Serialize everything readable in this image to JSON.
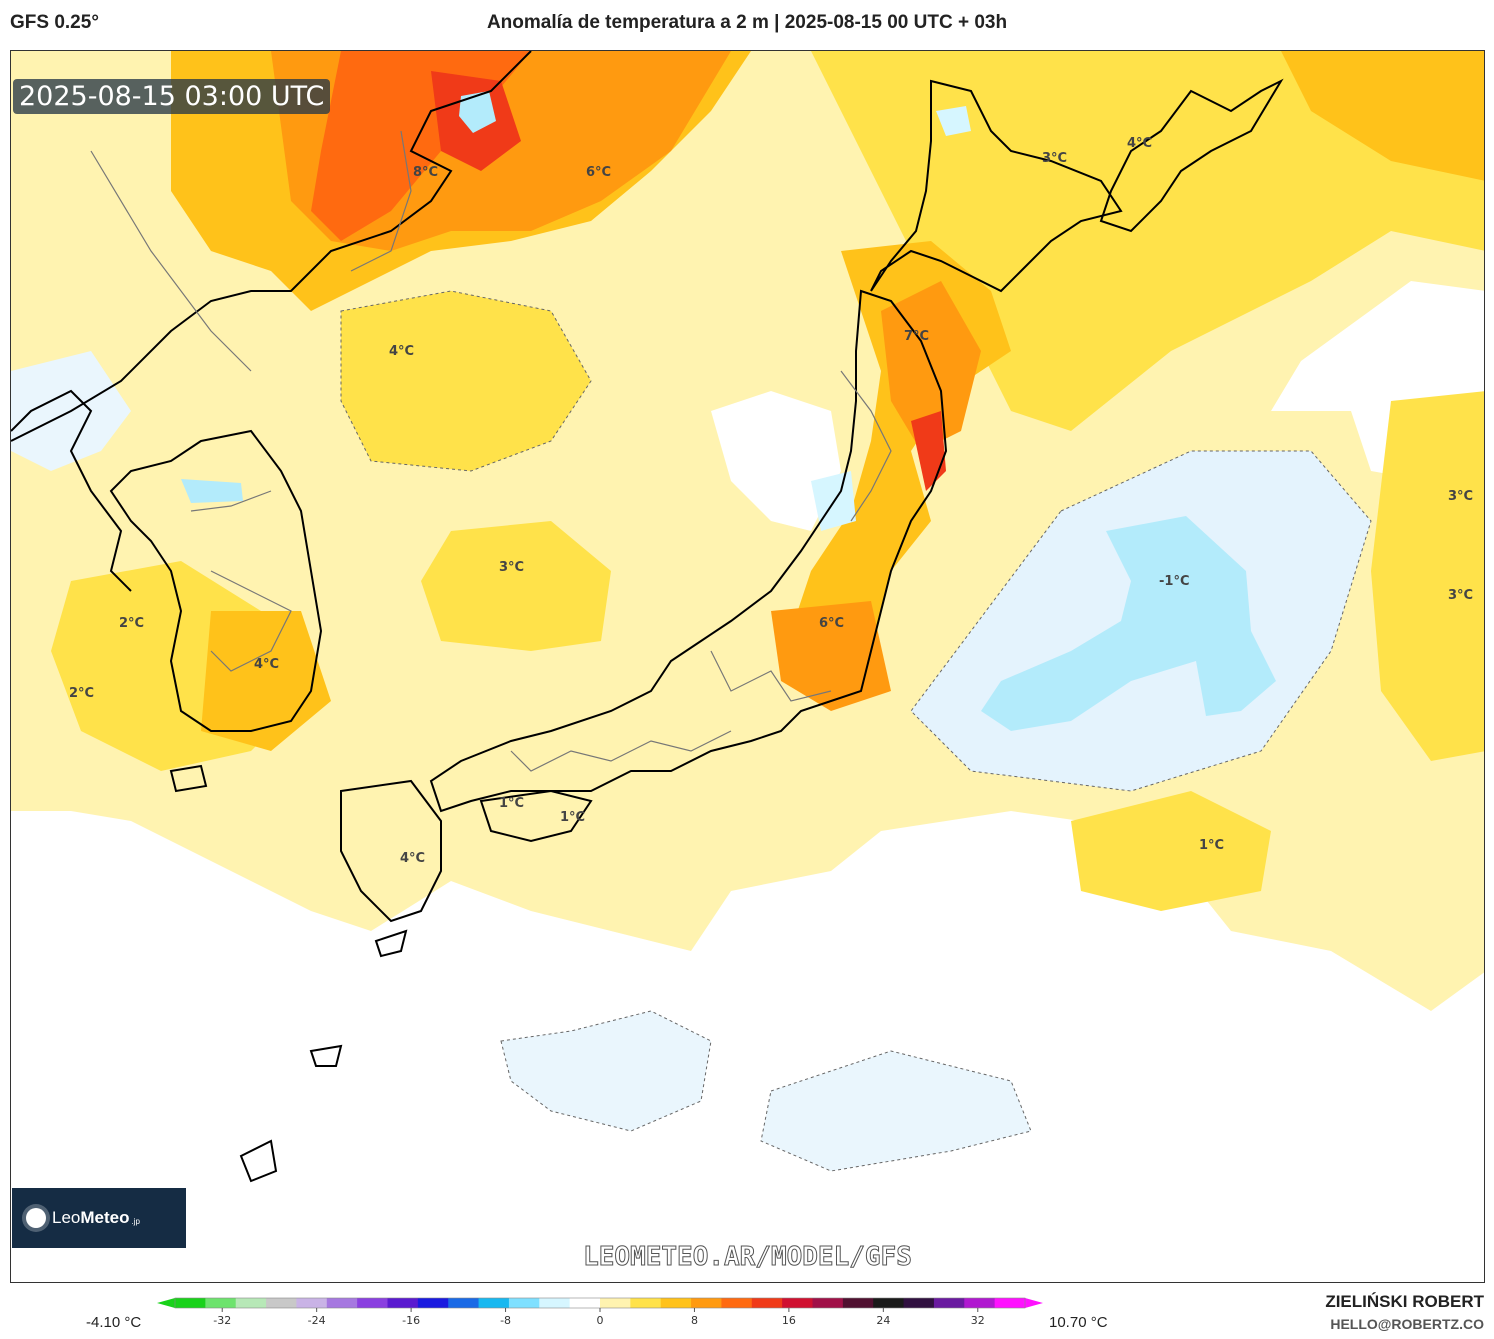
{
  "header": {
    "model": "GFS 0.25°",
    "title": "Anomalía de temperatura a 2 m | 2025-08-15 00 UTC + 03h"
  },
  "map": {
    "timestamp": "2025-08-15 03:00 UTC",
    "watermark_url": "LEOMETEO.AR/MODEL/GFS",
    "logo": {
      "name_light": "Leo",
      "name_bold": "Meteo",
      "suffix": ".jp"
    },
    "contour_labels": [
      {
        "text": "8°C"
      },
      {
        "text": "6°C"
      },
      {
        "text": "4°C"
      },
      {
        "text": "3°C"
      },
      {
        "text": "4°C"
      },
      {
        "text": "7°C"
      },
      {
        "text": "3°C"
      },
      {
        "text": "2°C"
      },
      {
        "text": "4°C"
      },
      {
        "text": "2°C"
      },
      {
        "text": "6°C"
      },
      {
        "text": "-1°C"
      },
      {
        "text": "3°C"
      },
      {
        "text": "3°C"
      },
      {
        "text": "1°C"
      },
      {
        "text": "1°C"
      },
      {
        "text": "4°C"
      },
      {
        "text": "1°C"
      }
    ]
  },
  "legend": {
    "min_label": "-4.10 °C",
    "max_label": "10.70 °C",
    "ticks": [
      "-32",
      "-24",
      "-16",
      "-8",
      "0",
      "8",
      "16",
      "24",
      "32"
    ],
    "tick_values": [
      -32,
      -24,
      -16,
      -8,
      0,
      8,
      16,
      24,
      32
    ],
    "range": [
      -36,
      36
    ],
    "colors": [
      "#19d21a",
      "#6de36d",
      "#b7e8b7",
      "#c8c8c8",
      "#c9b3e6",
      "#a678e0",
      "#8a3fe0",
      "#5a1ad0",
      "#1a1ae0",
      "#1a6ae6",
      "#18b8f0",
      "#7fe0ff",
      "#d6f6ff",
      "#ffffff",
      "#fff3b0",
      "#ffe24a",
      "#ffc21a",
      "#ff9a10",
      "#ff6a10",
      "#f03a18",
      "#d01030",
      "#a01048",
      "#501030",
      "#1a1a1a",
      "#301040",
      "#6a1aa0",
      "#b018d0",
      "#ff10ff"
    ]
  },
  "credit": {
    "name": "ZIELIŃSKI ROBERT",
    "email": "HELLO@ROBERTZ.CO"
  }
}
